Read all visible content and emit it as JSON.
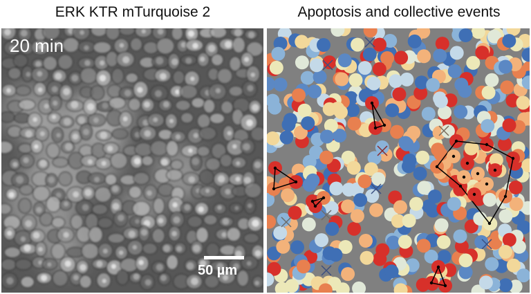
{
  "left_panel": {
    "title": "ERK KTR mTurquoise 2",
    "time_label": "20 min",
    "scale_bar_label": "50 µm"
  },
  "right_panel": {
    "title": "Apoptosis and collective events"
  },
  "colors": {
    "background": "#808080",
    "low": "#3f6fb5",
    "mid": "#ece8b8",
    "high": "#d7302a",
    "apoptosis_marker": "#3b4f80",
    "event_outline": "#000000"
  }
}
